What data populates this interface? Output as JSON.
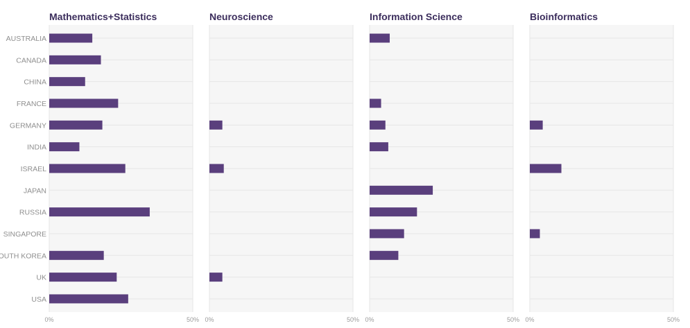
{
  "chart_data": {
    "type": "bar",
    "orientation": "horizontal",
    "categories": [
      "AUSTRALIA",
      "CANADA",
      "CHINA",
      "FRANCE",
      "GERMANY",
      "INDIA",
      "ISRAEL",
      "JAPAN",
      "RUSSIA",
      "SINGAPORE",
      "SOUTH KOREA",
      "UK",
      "USA"
    ],
    "xlim": [
      0,
      50
    ],
    "x_ticks": [
      "0%",
      "50%"
    ],
    "bar_color": "#5a3f7d",
    "panel_background": "#f6f6f6",
    "grid": true,
    "series": [
      {
        "name": "Mathematics+Statistics",
        "values": [
          15,
          18,
          12.5,
          24,
          18.5,
          10.5,
          26.5,
          0,
          35,
          0,
          19,
          23.5,
          27.5
        ]
      },
      {
        "name": "Neuroscience",
        "values": [
          0,
          0,
          0,
          0,
          4.5,
          0,
          5,
          0,
          0,
          0,
          0,
          4.5,
          0
        ]
      },
      {
        "name": "Information Science",
        "values": [
          7,
          0,
          0,
          4,
          5.5,
          6.5,
          0,
          22,
          16.5,
          12,
          10,
          0,
          0
        ]
      },
      {
        "name": "Bioinformatics",
        "values": [
          0,
          0,
          0,
          0,
          4.5,
          0,
          11,
          0,
          0,
          3.5,
          0,
          0,
          0
        ]
      }
    ]
  }
}
